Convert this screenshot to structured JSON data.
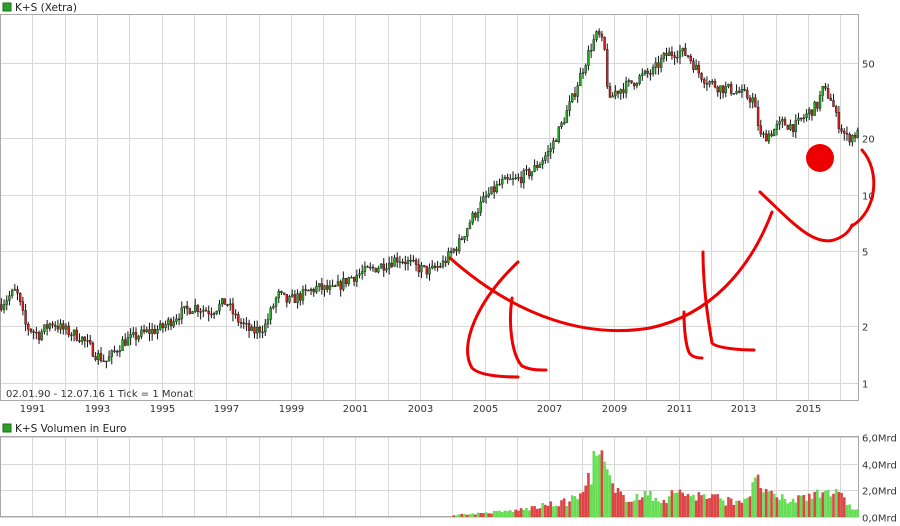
{
  "chart_data": [
    {
      "type": "candlestick",
      "title": "K+S (Xetra)",
      "info": "02.01.90 - 12.07.16   1 Tick = 1 Monat",
      "y_scale": "log",
      "ylim": [
        0.8,
        90
      ],
      "y_ticks": [
        1,
        2,
        5,
        10,
        20,
        50
      ],
      "x_range": [
        1990.0,
        2016.55
      ],
      "x_ticks": [
        1991,
        1993,
        1995,
        1997,
        1999,
        2001,
        2003,
        2005,
        2007,
        2009,
        2011,
        2013,
        2015
      ],
      "grid": true,
      "legend_color": "#2aa02a",
      "up_color": "#22aa22",
      "down_color": "#cc2222",
      "series": [
        {
          "x": [
            1990.0,
            1990.5,
            1990.8,
            1991.2,
            1991.6,
            1992.0,
            1992.5,
            1993.0,
            1993.3,
            1993.8,
            1994.5,
            1995.0,
            1995.5,
            1996.0,
            1996.5,
            1997.0,
            1997.3,
            1997.8,
            1998.2,
            1998.6,
            1998.9,
            1999.3,
            1999.8,
            2000.3,
            2000.8,
            2001.3,
            2001.8,
            2002.3,
            2002.6,
            2002.9,
            2003.3,
            2003.7,
            2004.2,
            2004.6,
            2005.0,
            2005.5,
            2006.0,
            2006.5,
            2007.0,
            2007.4,
            2007.7,
            2008.0,
            2008.3,
            2008.5,
            2008.7,
            2008.85,
            2009.0,
            2009.4,
            2009.8,
            2010.2,
            2010.6,
            2011.0,
            2011.3,
            2011.6,
            2011.9,
            2012.3,
            2012.7,
            2013.0,
            2013.3,
            2013.55,
            2013.8,
            2014.2,
            2014.6,
            2015.0,
            2015.3,
            2015.45,
            2015.7,
            2015.9,
            2016.2,
            2016.5
          ],
          "close": [
            2.6,
            3.1,
            2.0,
            1.8,
            2.1,
            1.9,
            1.75,
            1.4,
            1.3,
            1.65,
            1.85,
            1.95,
            2.3,
            2.55,
            2.4,
            2.7,
            2.2,
            1.85,
            2.0,
            2.95,
            2.7,
            2.9,
            3.2,
            3.1,
            3.6,
            3.9,
            4.2,
            4.6,
            4.4,
            4.1,
            3.9,
            4.3,
            5.5,
            7.5,
            9.5,
            11.5,
            12.0,
            13.5,
            17.0,
            24.0,
            32.0,
            45.0,
            62.0,
            72.0,
            60.0,
            30.0,
            35.0,
            38.0,
            42.0,
            45.0,
            55.0,
            58.0,
            55.0,
            45.0,
            40.0,
            37.0,
            36.0,
            34.0,
            32.0,
            20.0,
            21.0,
            24.0,
            23.0,
            27.0,
            30.0,
            36.0,
            33.0,
            25.0,
            20.0,
            21.0
          ]
        }
      ]
    },
    {
      "type": "bar",
      "title": "K+S Volumen in Euro",
      "ylim": [
        0,
        6.0
      ],
      "y_tick_labels": [
        "0,0Mrd",
        "2,0Mrd",
        "4,0Mrd",
        "6,0Mrd"
      ],
      "y_tick_values": [
        0,
        2,
        4,
        6
      ],
      "x_range": [
        1990.0,
        2016.55
      ],
      "grid": true,
      "legend_color": "#2aa02a",
      "series": [
        {
          "x": [
            2004.0,
            2005.0,
            2006.0,
            2006.5,
            2007.0,
            2007.5,
            2008.0,
            2008.3,
            2008.5,
            2008.7,
            2009.0,
            2009.5,
            2010.0,
            2010.5,
            2011.0,
            2011.5,
            2012.0,
            2012.5,
            2013.0,
            2013.5,
            2013.8,
            2014.0,
            2014.5,
            2015.0,
            2015.5,
            2016.0,
            2016.5
          ],
          "values": [
            0.15,
            0.3,
            0.5,
            0.7,
            0.9,
            1.1,
            1.6,
            3.5,
            4.8,
            3.8,
            1.8,
            1.5,
            1.6,
            1.3,
            1.9,
            1.6,
            1.5,
            1.2,
            1.3,
            2.7,
            1.6,
            1.4,
            1.2,
            1.6,
            2.2,
            1.5,
            0.5
          ]
        }
      ]
    }
  ]
}
